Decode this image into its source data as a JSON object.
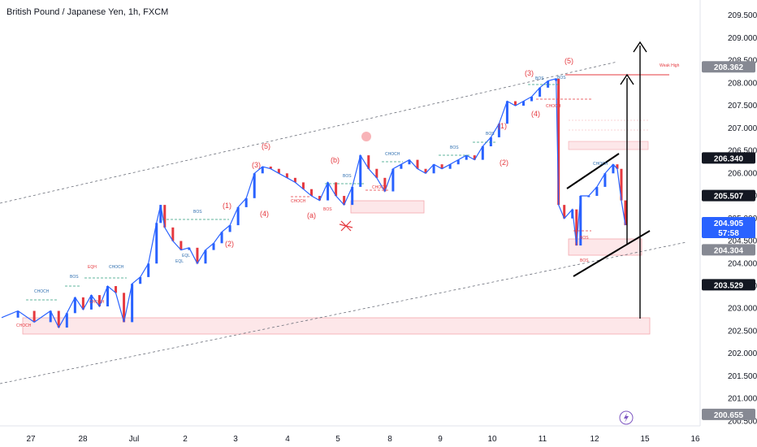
{
  "header": {
    "symbol_title": "British Pound / Japanese Yen, 1h, FXCM"
  },
  "chart_data": {
    "type": "candlestick",
    "title": "British Pound / Japanese Yen, 1h, FXCM",
    "y_axis": {
      "ticks": [
        "209.500",
        "209.000",
        "208.500",
        "208.000",
        "207.500",
        "207.000",
        "206.500",
        "206.000",
        "205.500",
        "205.000",
        "204.500",
        "204.000",
        "203.500",
        "203.000",
        "202.500",
        "202.000",
        "201.500",
        "201.000",
        "200.500"
      ],
      "range": [
        200.4,
        209.7
      ]
    },
    "x_axis": {
      "ticks": [
        "27",
        "28",
        "Jul",
        "2",
        "3",
        "4",
        "5",
        "8",
        "9",
        "10",
        "11",
        "12",
        "15",
        "16"
      ]
    },
    "price_labels": [
      {
        "text": "208.362",
        "value": 208.362,
        "color": "#868993",
        "text_color": "#ffffff"
      },
      {
        "text": "206.340",
        "value": 206.34,
        "color": "#131722",
        "text_color": "#ffffff"
      },
      {
        "text": "205.507",
        "value": 205.507,
        "color": "#131722",
        "text_color": "#ffffff"
      },
      {
        "text": "204.905",
        "sub": "57:58",
        "value": 204.905,
        "color": "#2962ff",
        "text_color": "#ffffff"
      },
      {
        "text": "204.304",
        "value": 204.304,
        "color": "#868993",
        "text_color": "#ffffff"
      },
      {
        "text": "203.529",
        "value": 203.529,
        "color": "#131722",
        "text_color": "#ffffff"
      },
      {
        "text": "200.655",
        "value": 200.655,
        "color": "#868993",
        "text_color": "#ffffff"
      }
    ],
    "price_path": [
      [
        0,
        202.8
      ],
      [
        2,
        202.95
      ],
      [
        4,
        202.7
      ],
      [
        6,
        202.95
      ],
      [
        7,
        202.58
      ],
      [
        8,
        202.9
      ],
      [
        9,
        203.25
      ],
      [
        10,
        202.98
      ],
      [
        11,
        203.3
      ],
      [
        12,
        203.05
      ],
      [
        13,
        203.5
      ],
      [
        14,
        203.35
      ],
      [
        15,
        202.7
      ],
      [
        16,
        203.55
      ],
      [
        17,
        203.7
      ],
      [
        18,
        204.0
      ],
      [
        19,
        204.9
      ],
      [
        19.5,
        205.3
      ],
      [
        20,
        204.8
      ],
      [
        21,
        204.5
      ],
      [
        22,
        204.3
      ],
      [
        23,
        204.35
      ],
      [
        24,
        204.0
      ],
      [
        25,
        204.3
      ],
      [
        26,
        204.45
      ],
      [
        27,
        204.7
      ],
      [
        28,
        204.85
      ],
      [
        29,
        205.25
      ],
      [
        30,
        205.45
      ],
      [
        31,
        206.0
      ],
      [
        32,
        206.15
      ],
      [
        33,
        206.1
      ],
      [
        34,
        206.0
      ],
      [
        35,
        205.9
      ],
      [
        36,
        205.8
      ],
      [
        37,
        205.65
      ],
      [
        38,
        205.5
      ],
      [
        39,
        205.4
      ],
      [
        40,
        205.8
      ],
      [
        41,
        205.5
      ],
      [
        42,
        205.3
      ],
      [
        43,
        205.7
      ],
      [
        44,
        206.4
      ],
      [
        45,
        206.1
      ],
      [
        46,
        205.9
      ],
      [
        47,
        205.6
      ],
      [
        48,
        206.1
      ],
      [
        49,
        206.2
      ],
      [
        50,
        206.3
      ],
      [
        51,
        206.1
      ],
      [
        52,
        206.0
      ],
      [
        53,
        206.2
      ],
      [
        54,
        206.1
      ],
      [
        55,
        206.2
      ],
      [
        56,
        206.3
      ],
      [
        57,
        206.4
      ],
      [
        58,
        206.3
      ],
      [
        59,
        206.6
      ],
      [
        60,
        206.8
      ],
      [
        61,
        207.1
      ],
      [
        62,
        207.6
      ],
      [
        63,
        207.5
      ],
      [
        64,
        207.6
      ],
      [
        65,
        207.7
      ],
      [
        66,
        207.9
      ],
      [
        67,
        208.05
      ],
      [
        68,
        208.1
      ],
      [
        68.3,
        205.3
      ],
      [
        69,
        205.0
      ],
      [
        70,
        205.2
      ],
      [
        70.5,
        204.4
      ],
      [
        71,
        205.5
      ],
      [
        72,
        205.5
      ],
      [
        73,
        205.7
      ],
      [
        74,
        206.0
      ],
      [
        75,
        206.2
      ],
      [
        75.5,
        206.1
      ],
      [
        76,
        205.4
      ],
      [
        76.5,
        204.85
      ]
    ],
    "price_path_x_unit": "hourly bars (approx., every second bar)",
    "elliott_labels": [
      {
        "text": "(5)",
        "price": 206.8
      },
      {
        "text": "(3)",
        "price": 206.0
      },
      {
        "text": "(4)",
        "price": 205.0
      },
      {
        "text": "(1)",
        "price": 205.2
      },
      {
        "text": "(2)",
        "price": 204.3
      },
      {
        "text": "(b)",
        "price": 206.1
      },
      {
        "text": "(a)",
        "price": 204.95
      },
      {
        "text": "(3)",
        "price": 207.7
      },
      {
        "text": "(5)",
        "price": 208.4
      },
      {
        "text": "(4)",
        "price": 207.2
      },
      {
        "text": "(1)",
        "price": 206.9
      },
      {
        "text": "(2)",
        "price": 206.0
      }
    ],
    "smc_labels": [
      "BOS",
      "BOS",
      "BOS",
      "BOS",
      "BOS",
      "BOS",
      "BOS",
      "BOS",
      "BOS",
      "BOS",
      "CHOCH",
      "CHOCH",
      "CHOCH",
      "CHOCH",
      "CHOCH",
      "CHOCH",
      "CHOCH",
      "CHOCH",
      "CHOCH",
      "EQH",
      "EQL",
      "EQL",
      "Weak High"
    ],
    "annotations": {
      "weak_high_label": "Weak High",
      "demand_zone": [
        202.35,
        202.65
      ],
      "upper_channel_line": "dashed",
      "lower_channel_line": "dashed"
    },
    "colors": {
      "up": "#2962ff",
      "down": "#e5393f",
      "zone": "#fde7e9",
      "zone_border": "#f4a7ad"
    }
  }
}
